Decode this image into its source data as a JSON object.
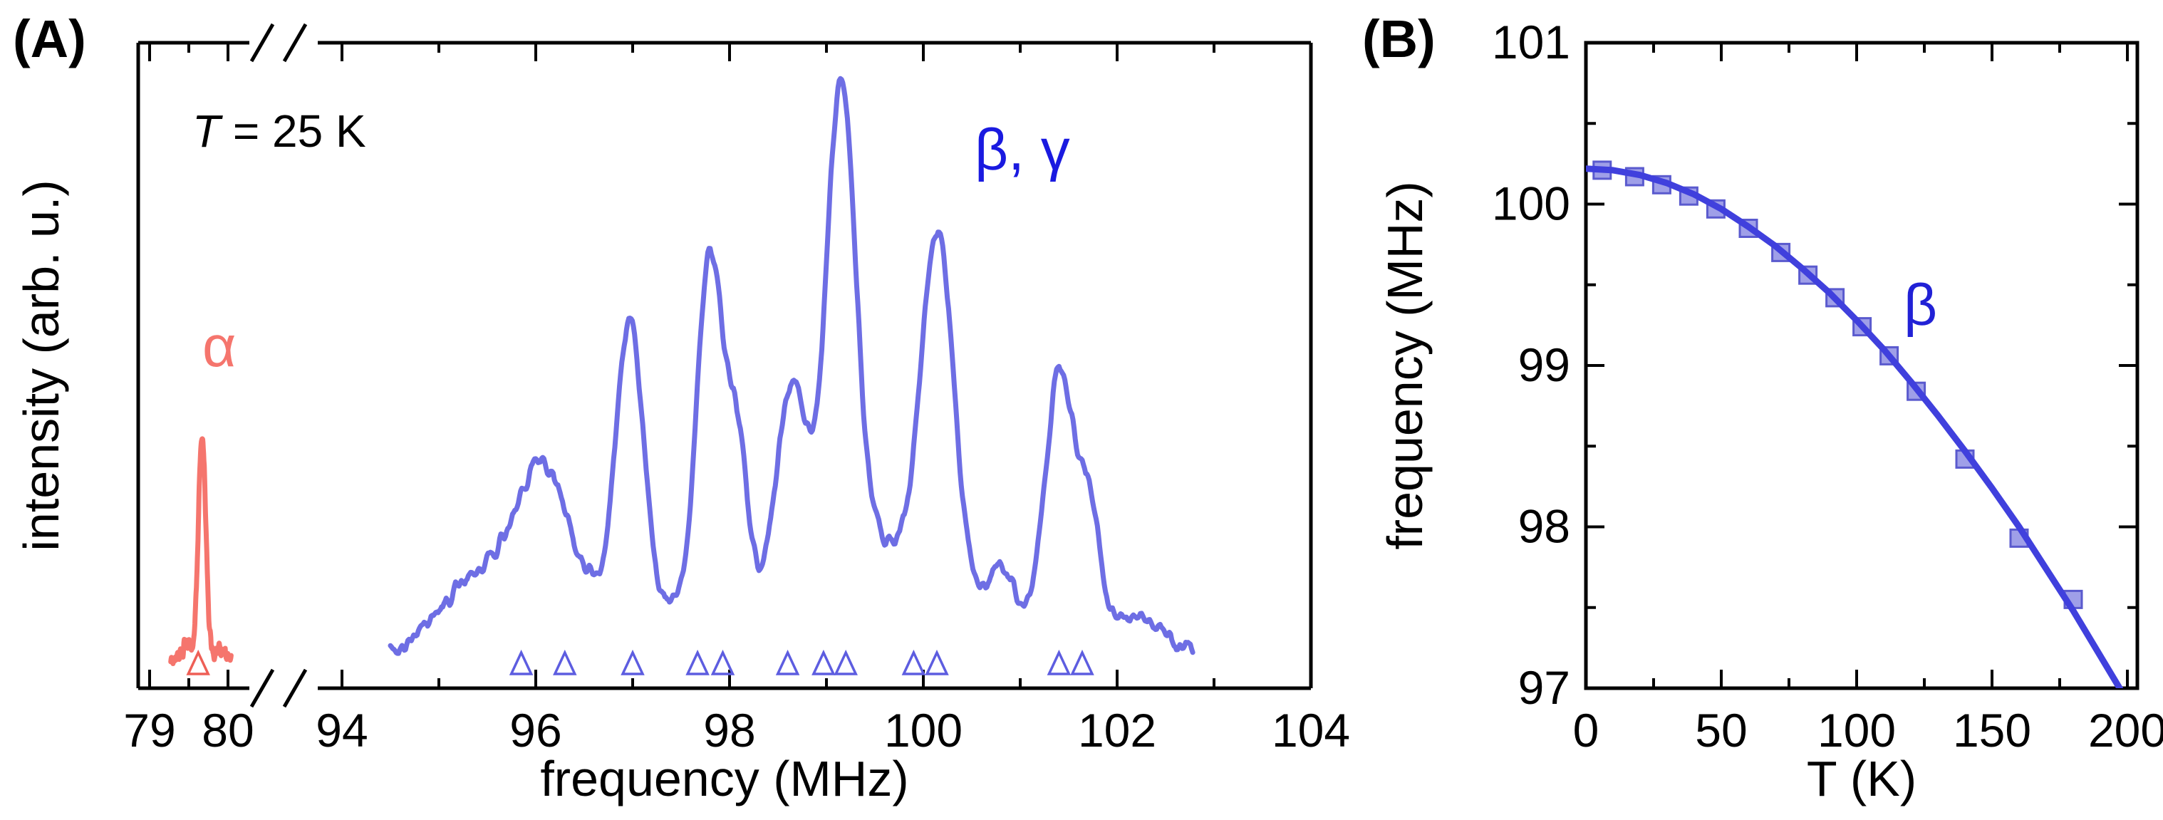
{
  "chart_data": [
    {
      "type": "line",
      "panel_label": "(A)",
      "annotation": "T = 25 K",
      "annotation_symbol": "T",
      "annotation_rest": " = 25 K",
      "xlabel": "frequency (MHz)",
      "ylabel": "intensity (arb. u.)",
      "axis_break": true,
      "x_segments": [
        [
          78.85,
          80.27
        ],
        [
          93.7,
          104
        ]
      ],
      "xticks": {
        "left": [
          79,
          80
        ],
        "right": [
          94,
          96,
          98,
          100,
          102,
          104
        ]
      },
      "xminor": {
        "left": [
          79.5
        ],
        "right": [
          95,
          97,
          99,
          101,
          103
        ]
      },
      "ylim": [
        0,
        1.15
      ],
      "series": [
        {
          "name": "α",
          "color": "#f5756d",
          "marker_color": "#ee5f56",
          "range": [
            79.27,
            80.04
          ],
          "noise": 0.014,
          "peaks": [
            {
              "c": 79.67,
              "a": 0.4,
              "s": 0.048
            },
            {
              "c": 79.48,
              "a": 0.025,
              "s": 0.05
            },
            {
              "c": 79.88,
              "a": 0.02,
              "s": 0.06
            }
          ],
          "markers": [
            79.62
          ]
        },
        {
          "name": "β, γ",
          "color": "#6e6ee4",
          "marker_color": "#5d5de0",
          "range": [
            94.5,
            102.78
          ],
          "noise": 0.016,
          "peaks": [
            {
              "c": 95.05,
              "a": 0.05,
              "s": 0.22
            },
            {
              "c": 95.45,
              "a": 0.09,
              "s": 0.22
            },
            {
              "c": 96.05,
              "a": 0.26,
              "s": 0.27
            },
            {
              "c": 96.97,
              "a": 0.5,
              "s": 0.14
            },
            {
              "c": 97.8,
              "a": 0.62,
              "s": 0.13
            },
            {
              "c": 98.08,
              "a": 0.28,
              "s": 0.1
            },
            {
              "c": 98.65,
              "a": 0.38,
              "s": 0.16
            },
            {
              "c": 99.15,
              "a": 0.88,
              "s": 0.15
            },
            {
              "c": 99.55,
              "a": 0.1,
              "s": 0.3
            },
            {
              "c": 100.15,
              "a": 0.66,
              "s": 0.17
            },
            {
              "c": 100.8,
              "a": 0.1,
              "s": 0.13
            },
            {
              "c": 101.4,
              "a": 0.46,
              "s": 0.14
            },
            {
              "c": 101.7,
              "a": 0.22,
              "s": 0.12
            },
            {
              "c": 102.2,
              "a": 0.05,
              "s": 0.25
            },
            {
              "c": 98.9,
              "a": 0.11,
              "s": 2.0
            },
            {
              "c": 96.2,
              "a": 0.05,
              "s": 0.7
            }
          ],
          "markers": [
            95.85,
            96.3,
            97.0,
            97.67,
            97.93,
            98.6,
            98.97,
            99.2,
            99.9,
            100.14,
            101.4,
            101.64
          ]
        }
      ]
    },
    {
      "type": "scatter",
      "panel_label": "(B)",
      "xlabel": "T (K)",
      "xlabel_symbol": "T",
      "xlabel_rest": " (K)",
      "ylabel": "frequency (MHz)",
      "series_label": "β",
      "series_label_color": "#2121d6",
      "xlim": [
        0,
        203.7
      ],
      "ylim": [
        97,
        101
      ],
      "xticks": [
        0,
        50,
        100,
        150,
        200
      ],
      "xminor": [
        25,
        75,
        125,
        175
      ],
      "yticks": [
        97,
        98,
        99,
        100,
        101
      ],
      "yminor": [
        97.5,
        98.5,
        99.5,
        100.5
      ],
      "points": [
        [
          6,
          100.21
        ],
        [
          18,
          100.17
        ],
        [
          28,
          100.12
        ],
        [
          38,
          100.05
        ],
        [
          48,
          99.97
        ],
        [
          60,
          99.85
        ],
        [
          72,
          99.7
        ],
        [
          82,
          99.56
        ],
        [
          92,
          99.42
        ],
        [
          102,
          99.24
        ],
        [
          112,
          99.06
        ],
        [
          122,
          98.84
        ],
        [
          140,
          98.42
        ],
        [
          160,
          97.93
        ],
        [
          180,
          97.55
        ]
      ],
      "fit": [
        [
          0,
          100.22
        ],
        [
          10,
          100.21
        ],
        [
          20,
          100.18
        ],
        [
          30,
          100.13
        ],
        [
          40,
          100.06
        ],
        [
          50,
          99.97
        ],
        [
          60,
          99.86
        ],
        [
          70,
          99.74
        ],
        [
          80,
          99.6
        ],
        [
          90,
          99.45
        ],
        [
          100,
          99.28
        ],
        [
          110,
          99.1
        ],
        [
          120,
          98.9
        ],
        [
          130,
          98.69
        ],
        [
          140,
          98.47
        ],
        [
          150,
          98.24
        ],
        [
          160,
          98.0
        ],
        [
          170,
          97.74
        ],
        [
          180,
          97.48
        ],
        [
          190,
          97.2
        ],
        [
          200,
          96.92
        ],
        [
          204,
          96.8
        ]
      ],
      "marker": {
        "fill": "#9f9fe8",
        "stroke": "#5a5ace"
      },
      "line_color": "#4040dd"
    }
  ],
  "colors": {
    "alpha": "#f5756d",
    "beta_gamma_label": "#1a1ae0",
    "axis": "#000000"
  }
}
